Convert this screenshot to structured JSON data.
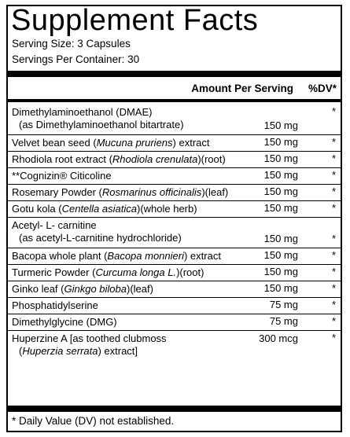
{
  "title": "Supplement Facts",
  "serving_size": "Serving Size: 3 Capsules",
  "servings_per_container": "Servings Per Container: 30",
  "header": {
    "amount": "Amount Per Serving",
    "dv": "%DV*"
  },
  "rows": [
    {
      "name": "Dimethylaminoethanol (DMAE)",
      "sub": "(as Dimethylaminoethanol bitartrate)",
      "value": "150 mg",
      "dv": "*"
    },
    {
      "pre": "Velvet bean seed (",
      "latin": "Mucuna pruriens",
      "post": ") extract",
      "value": "150 mg",
      "dv": "*"
    },
    {
      "pre": "Rhodiola root extract (",
      "latin": "Rhodiola crenulata",
      "post": ")(root)",
      "value": "150 mg",
      "dv": "*"
    },
    {
      "name": "**Cognizin® Citicoline",
      "value": "150 mg",
      "dv": "*"
    },
    {
      "pre": "Rosemary Powder (",
      "latin": "Rosmarinus officinalis",
      "post": ")(leaf)",
      "value": "150 mg",
      "dv": "*"
    },
    {
      "pre": "Gotu kola (",
      "latin": "Centella asiatica",
      "post": ")(whole herb)",
      "value": "150 mg",
      "dv": "*"
    },
    {
      "name": "Acetyl- L- carnitine",
      "sub": "(as acetyl-L-carnitine hydrochloride)",
      "value": "150 mg",
      "dv": "*"
    },
    {
      "pre": "Bacopa whole plant (",
      "latin": "Bacopa monnieri",
      "post": ") extract",
      "value": "150 mg",
      "dv": "*"
    },
    {
      "pre": "Turmeric Powder (",
      "latin": "Curcuma longa L.",
      "post": ")(root)",
      "value": "150 mg",
      "dv": "*"
    },
    {
      "pre": "Ginko leaf (",
      "latin": "Ginkgo biloba",
      "post": ")(leaf)",
      "value": "150 mg",
      "dv": "*"
    },
    {
      "name": "Phosphatidylserine",
      "value": "75 mg",
      "dv": "*"
    },
    {
      "name": "Dimethylglycine (DMG)",
      "value": "75 mg",
      "dv": "*"
    },
    {
      "name": "Huperzine A [as toothed clubmoss",
      "sub_pre": "(",
      "sub_latin": "Huperzia serrata",
      "sub_post": ") extract]",
      "value": "300 mcg",
      "dv": "*"
    }
  ],
  "footnote": "* Daily Value (DV) not established."
}
